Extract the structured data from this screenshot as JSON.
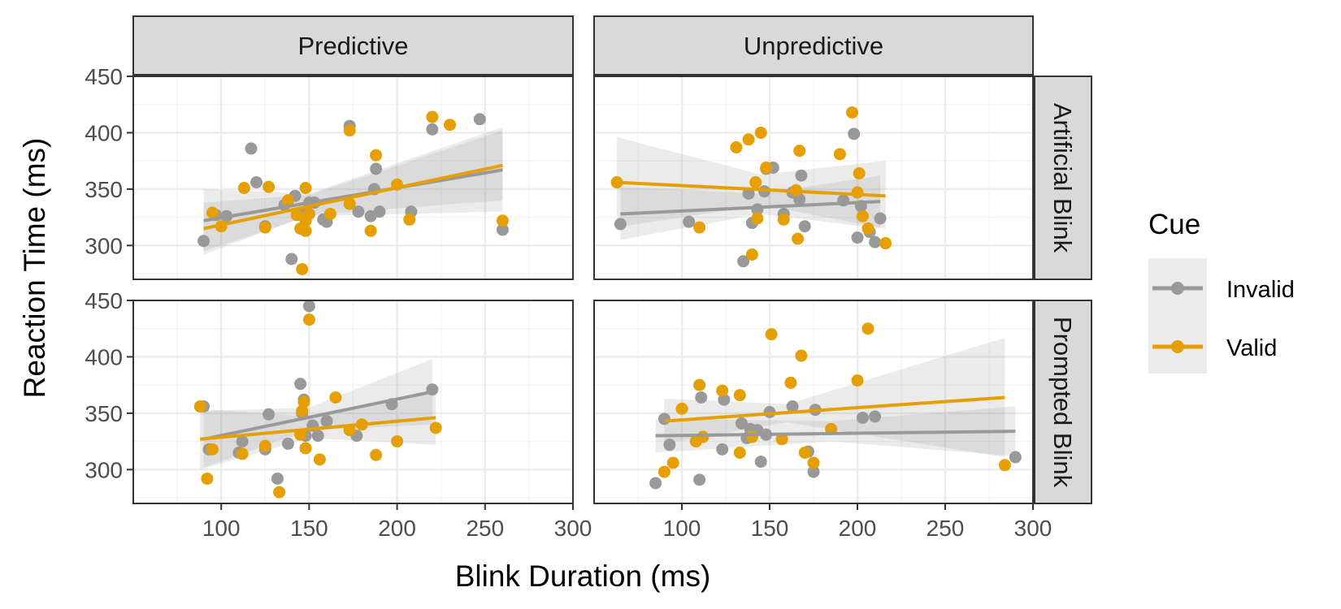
{
  "chart_data": {
    "type": "scatter",
    "xlabel": "Blink Duration (ms)",
    "ylabel": "Reaction Time (ms)",
    "xlim": [
      50,
      300
    ],
    "ylim": [
      270,
      450
    ],
    "x_ticks": [
      100,
      150,
      200,
      250,
      300
    ],
    "y_ticks": [
      300,
      350,
      400,
      450
    ],
    "x_tick_labels": [
      "100",
      "150",
      "200",
      "250",
      "300"
    ],
    "y_tick_labels": [
      "300",
      "350",
      "400",
      "450"
    ],
    "grid": true,
    "facet_columns": [
      "Predictive",
      "Unpredictive"
    ],
    "facet_rows": [
      "Artificial Blink",
      "Prompted Blink"
    ],
    "legend": {
      "title": "Cue",
      "placement": "right",
      "entries": [
        {
          "name": "Invalid",
          "color": "#999999"
        },
        {
          "name": "Valid",
          "color": "#E69F00"
        }
      ]
    },
    "panels": [
      {
        "column": "Predictive",
        "row": "Artificial Blink",
        "series": [
          {
            "name": "Invalid",
            "points": [
              [
                90,
                304
              ],
              [
                97,
                327
              ],
              [
                103,
                326
              ],
              [
                117,
                386
              ],
              [
                120,
                356
              ],
              [
                125,
                317
              ],
              [
                136,
                336
              ],
              [
                140,
                288
              ],
              [
                142,
                344
              ],
              [
                148,
                330
              ],
              [
                150,
                338
              ],
              [
                153,
                338
              ],
              [
                158,
                323
              ],
              [
                160,
                321
              ],
              [
                173,
                406
              ],
              [
                178,
                330
              ],
              [
                185,
                326
              ],
              [
                187,
                350
              ],
              [
                188,
                368
              ],
              [
                190,
                330
              ],
              [
                208,
                330
              ],
              [
                220,
                403
              ],
              [
                247,
                412
              ],
              [
                260,
                314
              ]
            ],
            "fit": {
              "x": [
                90,
                260
              ],
              "y": [
                322,
                367
              ],
              "ci": [
                [
                  90,
                  295,
                  350
                ],
                [
                  150,
                  326,
                  346
                ],
                [
                  260,
                  330,
                  405
                ]
              ]
            }
          },
          {
            "name": "Valid",
            "points": [
              [
                95,
                329
              ],
              [
                100,
                317
              ],
              [
                113,
                351
              ],
              [
                125,
                316
              ],
              [
                127,
                352
              ],
              [
                138,
                340
              ],
              [
                143,
                327
              ],
              [
                145,
                315
              ],
              [
                146,
                279
              ],
              [
                148,
                322
              ],
              [
                148,
                351
              ],
              [
                148,
                313
              ],
              [
                150,
                328
              ],
              [
                162,
                328
              ],
              [
                173,
                337
              ],
              [
                173,
                402
              ],
              [
                185,
                313
              ],
              [
                188,
                380
              ],
              [
                200,
                354
              ],
              [
                207,
                323
              ],
              [
                220,
                414
              ],
              [
                230,
                407
              ],
              [
                260,
                322
              ]
            ],
            "fit": {
              "x": [
                90,
                260
              ],
              "y": [
                315,
                371
              ],
              "ci": [
                [
                  90,
                  292,
                  338
                ],
                [
                  150,
                  327,
                  345
                ],
                [
                  260,
                  340,
                  402
                ]
              ]
            }
          }
        ]
      },
      {
        "column": "Unpredictive",
        "row": "Artificial Blink",
        "series": [
          {
            "name": "Invalid",
            "points": [
              [
                65,
                319
              ],
              [
                104,
                321
              ],
              [
                135,
                286
              ],
              [
                138,
                346
              ],
              [
                140,
                320
              ],
              [
                143,
                332
              ],
              [
                147,
                348
              ],
              [
                148,
                368
              ],
              [
                152,
                369
              ],
              [
                158,
                328
              ],
              [
                163,
                347
              ],
              [
                167,
                341
              ],
              [
                168,
                362
              ],
              [
                170,
                317
              ],
              [
                192,
                340
              ],
              [
                198,
                399
              ],
              [
                200,
                307
              ],
              [
                202,
                335
              ],
              [
                207,
                312
              ],
              [
                210,
                303
              ],
              [
                213,
                324
              ]
            ],
            "fit": {
              "x": [
                65,
                213
              ],
              "y": [
                328,
                339
              ],
              "ci": [
                [
                  65,
                  305,
                  352
                ],
                [
                  145,
                  328,
                  346
                ],
                [
                  213,
                  315,
                  362
                ]
              ]
            }
          },
          {
            "name": "Valid",
            "points": [
              [
                63,
                356
              ],
              [
                110,
                316
              ],
              [
                131,
                387
              ],
              [
                138,
                394
              ],
              [
                140,
                292
              ],
              [
                142,
                356
              ],
              [
                143,
                324
              ],
              [
                145,
                400
              ],
              [
                148,
                369
              ],
              [
                158,
                323
              ],
              [
                165,
                349
              ],
              [
                166,
                306
              ],
              [
                167,
                384
              ],
              [
                190,
                381
              ],
              [
                197,
                418
              ],
              [
                200,
                347
              ],
              [
                201,
                364
              ],
              [
                203,
                326
              ],
              [
                206,
                315
              ],
              [
                216,
                302
              ]
            ],
            "fit": {
              "x": [
                63,
                216
              ],
              "y": [
                356,
                344
              ],
              "ci": [
                [
                  63,
                  316,
                  396
                ],
                [
                  145,
                  336,
                  363
                ],
                [
                  216,
                  315,
                  375
                ]
              ]
            }
          }
        ]
      },
      {
        "column": "Predictive",
        "row": "Prompted Blink",
        "series": [
          {
            "name": "Invalid",
            "points": [
              [
                90,
                356
              ],
              [
                93,
                318
              ],
              [
                110,
                315
              ],
              [
                112,
                325
              ],
              [
                125,
                318
              ],
              [
                127,
                349
              ],
              [
                132,
                292
              ],
              [
                138,
                323
              ],
              [
                145,
                376
              ],
              [
                146,
                350
              ],
              [
                147,
                362
              ],
              [
                148,
                330
              ],
              [
                150,
                445
              ],
              [
                152,
                339
              ],
              [
                155,
                330
              ],
              [
                160,
                343
              ],
              [
                177,
                330
              ],
              [
                197,
                358
              ],
              [
                220,
                371
              ]
            ],
            "fit": {
              "x": [
                90,
                220
              ],
              "y": [
                327,
                369
              ],
              "ci": [
                [
                  90,
                  302,
                  352
                ],
                [
                  150,
                  335,
                  355
                ],
                [
                  220,
                  340,
                  398
                ]
              ]
            }
          },
          {
            "name": "Valid",
            "points": [
              [
                88,
                356
              ],
              [
                92,
                292
              ],
              [
                95,
                318
              ],
              [
                112,
                314
              ],
              [
                125,
                321
              ],
              [
                133,
                280
              ],
              [
                145,
                331
              ],
              [
                146,
                352
              ],
              [
                147,
                360
              ],
              [
                148,
                319
              ],
              [
                150,
                433
              ],
              [
                156,
                309
              ],
              [
                165,
                364
              ],
              [
                173,
                335
              ],
              [
                180,
                340
              ],
              [
                188,
                313
              ],
              [
                200,
                325
              ],
              [
                222,
                337
              ]
            ],
            "fit": {
              "x": [
                88,
                222
              ],
              "y": [
                327,
                346
              ],
              "ci": [
                [
                  88,
                  300,
                  354
                ],
                [
                  150,
                  328,
                  347
                ],
                [
                  222,
                  322,
                  370
                ]
              ]
            }
          }
        ]
      },
      {
        "column": "Unpredictive",
        "row": "Prompted Blink",
        "series": [
          {
            "name": "Invalid",
            "points": [
              [
                85,
                288
              ],
              [
                90,
                345
              ],
              [
                93,
                322
              ],
              [
                110,
                291
              ],
              [
                111,
                364
              ],
              [
                123,
                318
              ],
              [
                124,
                362
              ],
              [
                134,
                341
              ],
              [
                137,
                328
              ],
              [
                139,
                336
              ],
              [
                143,
                335
              ],
              [
                145,
                307
              ],
              [
                148,
                331
              ],
              [
                150,
                351
              ],
              [
                163,
                356
              ],
              [
                172,
                316
              ],
              [
                175,
                298
              ],
              [
                176,
                353
              ],
              [
                203,
                346
              ],
              [
                210,
                347
              ],
              [
                290,
                311
              ]
            ],
            "fit": {
              "x": [
                85,
                290
              ],
              "y": [
                330,
                334
              ],
              "ci": [
                [
                  85,
                  315,
                  345
                ],
                [
                  185,
                  325,
                  343
                ],
                [
                  290,
                  312,
                  356
                ]
              ]
            }
          },
          {
            "name": "Valid",
            "points": [
              [
                90,
                298
              ],
              [
                95,
                306
              ],
              [
                100,
                354
              ],
              [
                108,
                325
              ],
              [
                110,
                375
              ],
              [
                112,
                329
              ],
              [
                123,
                370
              ],
              [
                133,
                315
              ],
              [
                133,
                366
              ],
              [
                140,
                329
              ],
              [
                151,
                420
              ],
              [
                157,
                327
              ],
              [
                162,
                377
              ],
              [
                168,
                401
              ],
              [
                170,
                315
              ],
              [
                175,
                306
              ],
              [
                185,
                336
              ],
              [
                200,
                379
              ],
              [
                206,
                425
              ],
              [
                284,
                304
              ]
            ],
            "fit": {
              "x": [
                90,
                284
              ],
              "y": [
                343,
                364
              ],
              "ci": [
                [
                  90,
                  323,
                  363
                ],
                [
                  160,
                  342,
                  358
                ],
                [
                  284,
                  311,
                  417
                ]
              ]
            }
          }
        ]
      }
    ]
  }
}
